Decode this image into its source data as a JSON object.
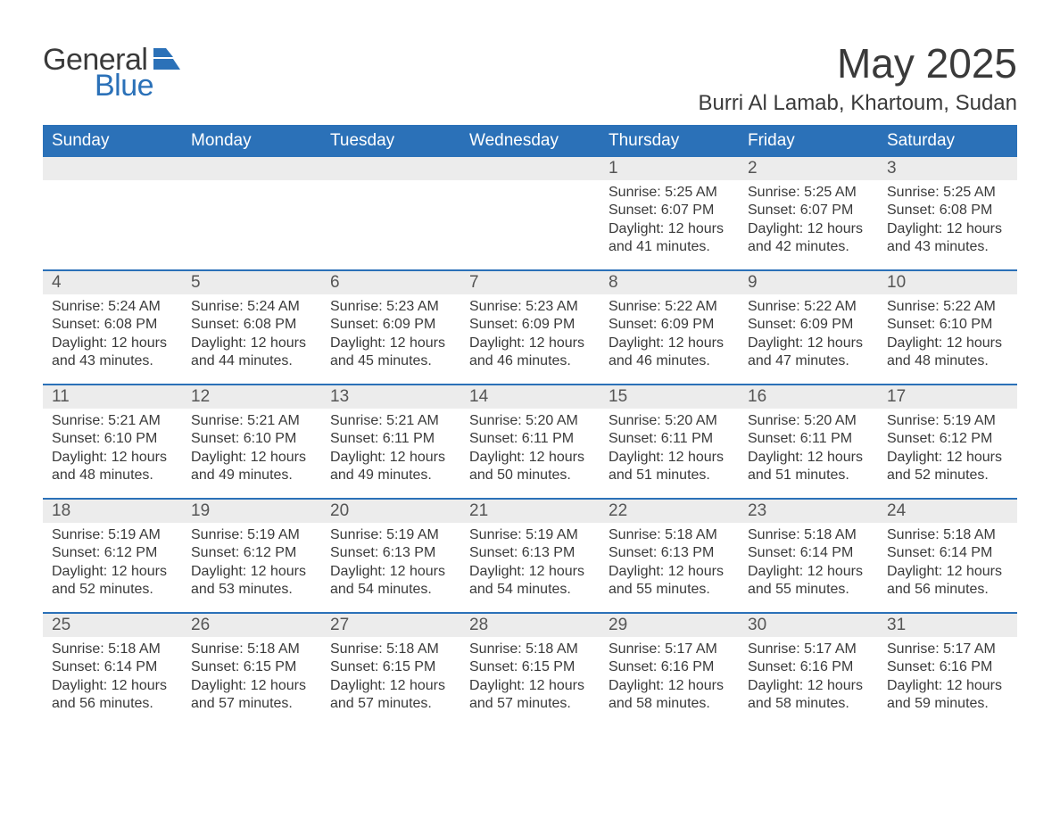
{
  "brand": {
    "word1": "General",
    "word2": "Blue",
    "flag_color": "#2b71b8"
  },
  "title": "May 2025",
  "location": "Burri Al Lamab, Khartoum, Sudan",
  "colors": {
    "header_bg": "#2b71b8",
    "header_text": "#ffffff",
    "daynum_bg": "#ececec",
    "page_bg": "#ffffff",
    "body_text": "#3a3a3a",
    "daynum_text": "#555555",
    "rule": "#2b71b8"
  },
  "typography": {
    "title_fontsize": 46,
    "location_fontsize": 24,
    "weekday_fontsize": 19,
    "daynum_fontsize": 19,
    "body_fontsize": 16,
    "font_family": "Segoe UI"
  },
  "layout": {
    "columns": 7,
    "rows": 5,
    "leading_blanks": 4
  },
  "weekdays": [
    "Sunday",
    "Monday",
    "Tuesday",
    "Wednesday",
    "Thursday",
    "Friday",
    "Saturday"
  ],
  "days": [
    {
      "n": 1,
      "sunrise": "5:25 AM",
      "sunset": "6:07 PM",
      "dl_h": 12,
      "dl_m": 41
    },
    {
      "n": 2,
      "sunrise": "5:25 AM",
      "sunset": "6:07 PM",
      "dl_h": 12,
      "dl_m": 42
    },
    {
      "n": 3,
      "sunrise": "5:25 AM",
      "sunset": "6:08 PM",
      "dl_h": 12,
      "dl_m": 43
    },
    {
      "n": 4,
      "sunrise": "5:24 AM",
      "sunset": "6:08 PM",
      "dl_h": 12,
      "dl_m": 43
    },
    {
      "n": 5,
      "sunrise": "5:24 AM",
      "sunset": "6:08 PM",
      "dl_h": 12,
      "dl_m": 44
    },
    {
      "n": 6,
      "sunrise": "5:23 AM",
      "sunset": "6:09 PM",
      "dl_h": 12,
      "dl_m": 45
    },
    {
      "n": 7,
      "sunrise": "5:23 AM",
      "sunset": "6:09 PM",
      "dl_h": 12,
      "dl_m": 46
    },
    {
      "n": 8,
      "sunrise": "5:22 AM",
      "sunset": "6:09 PM",
      "dl_h": 12,
      "dl_m": 46
    },
    {
      "n": 9,
      "sunrise": "5:22 AM",
      "sunset": "6:09 PM",
      "dl_h": 12,
      "dl_m": 47
    },
    {
      "n": 10,
      "sunrise": "5:22 AM",
      "sunset": "6:10 PM",
      "dl_h": 12,
      "dl_m": 48
    },
    {
      "n": 11,
      "sunrise": "5:21 AM",
      "sunset": "6:10 PM",
      "dl_h": 12,
      "dl_m": 48
    },
    {
      "n": 12,
      "sunrise": "5:21 AM",
      "sunset": "6:10 PM",
      "dl_h": 12,
      "dl_m": 49
    },
    {
      "n": 13,
      "sunrise": "5:21 AM",
      "sunset": "6:11 PM",
      "dl_h": 12,
      "dl_m": 49
    },
    {
      "n": 14,
      "sunrise": "5:20 AM",
      "sunset": "6:11 PM",
      "dl_h": 12,
      "dl_m": 50
    },
    {
      "n": 15,
      "sunrise": "5:20 AM",
      "sunset": "6:11 PM",
      "dl_h": 12,
      "dl_m": 51
    },
    {
      "n": 16,
      "sunrise": "5:20 AM",
      "sunset": "6:11 PM",
      "dl_h": 12,
      "dl_m": 51
    },
    {
      "n": 17,
      "sunrise": "5:19 AM",
      "sunset": "6:12 PM",
      "dl_h": 12,
      "dl_m": 52
    },
    {
      "n": 18,
      "sunrise": "5:19 AM",
      "sunset": "6:12 PM",
      "dl_h": 12,
      "dl_m": 52
    },
    {
      "n": 19,
      "sunrise": "5:19 AM",
      "sunset": "6:12 PM",
      "dl_h": 12,
      "dl_m": 53
    },
    {
      "n": 20,
      "sunrise": "5:19 AM",
      "sunset": "6:13 PM",
      "dl_h": 12,
      "dl_m": 54
    },
    {
      "n": 21,
      "sunrise": "5:19 AM",
      "sunset": "6:13 PM",
      "dl_h": 12,
      "dl_m": 54
    },
    {
      "n": 22,
      "sunrise": "5:18 AM",
      "sunset": "6:13 PM",
      "dl_h": 12,
      "dl_m": 55
    },
    {
      "n": 23,
      "sunrise": "5:18 AM",
      "sunset": "6:14 PM",
      "dl_h": 12,
      "dl_m": 55
    },
    {
      "n": 24,
      "sunrise": "5:18 AM",
      "sunset": "6:14 PM",
      "dl_h": 12,
      "dl_m": 56
    },
    {
      "n": 25,
      "sunrise": "5:18 AM",
      "sunset": "6:14 PM",
      "dl_h": 12,
      "dl_m": 56
    },
    {
      "n": 26,
      "sunrise": "5:18 AM",
      "sunset": "6:15 PM",
      "dl_h": 12,
      "dl_m": 57
    },
    {
      "n": 27,
      "sunrise": "5:18 AM",
      "sunset": "6:15 PM",
      "dl_h": 12,
      "dl_m": 57
    },
    {
      "n": 28,
      "sunrise": "5:18 AM",
      "sunset": "6:15 PM",
      "dl_h": 12,
      "dl_m": 57
    },
    {
      "n": 29,
      "sunrise": "5:17 AM",
      "sunset": "6:16 PM",
      "dl_h": 12,
      "dl_m": 58
    },
    {
      "n": 30,
      "sunrise": "5:17 AM",
      "sunset": "6:16 PM",
      "dl_h": 12,
      "dl_m": 58
    },
    {
      "n": 31,
      "sunrise": "5:17 AM",
      "sunset": "6:16 PM",
      "dl_h": 12,
      "dl_m": 59
    }
  ],
  "labels": {
    "sunrise": "Sunrise:",
    "sunset": "Sunset:",
    "daylight": "Daylight:",
    "hours_word": "hours",
    "and_word": "and",
    "minutes_word": "minutes."
  }
}
